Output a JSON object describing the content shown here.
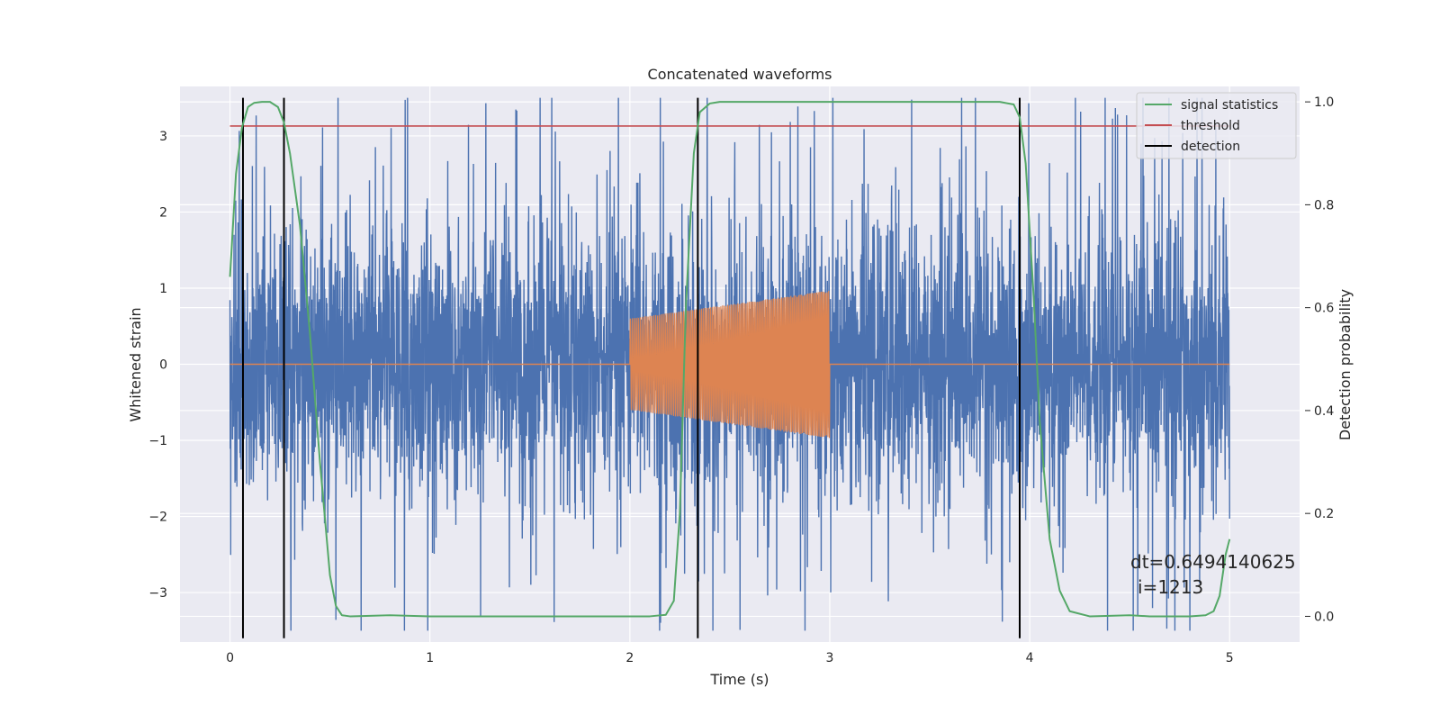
{
  "chart_data": {
    "type": "line",
    "title": "Concatenated waveforms",
    "xlabel": "Time (s)",
    "ylabel": "Whitened strain",
    "y2label": "Detection probability",
    "xlim": [
      -0.25,
      5.35
    ],
    "ylim": [
      -3.65,
      3.65
    ],
    "y2lim": [
      -0.05,
      1.03
    ],
    "xticks": [
      0,
      1,
      2,
      3,
      4,
      5
    ],
    "yticks": [
      -3,
      -2,
      -1,
      0,
      1,
      2,
      3
    ],
    "y2ticks": [
      0.0,
      0.2,
      0.4,
      0.6,
      0.8,
      1.0
    ],
    "grid": true,
    "legend_position": "top-right",
    "colors": {
      "background": "#eaeaf2",
      "grid": "#ffffff",
      "noise": "#4c72b0",
      "template": "#dd8452",
      "signal_statistics": "#55a868",
      "threshold": "#c44e52",
      "detection": "#000000"
    },
    "series": [
      {
        "name": "whitened strain",
        "axis": "left",
        "style": "noise",
        "x_range": [
          0,
          5
        ],
        "amplitude_core": 0.8,
        "amplitude_peak": 3.5
      },
      {
        "name": "injected waveform",
        "axis": "left",
        "style": "chirp",
        "x_range": [
          2,
          3
        ],
        "amplitude_start": 0.6,
        "amplitude_end": 0.97
      },
      {
        "name": "signal statistics",
        "axis": "right",
        "x": [
          0.0,
          0.03,
          0.06,
          0.09,
          0.12,
          0.16,
          0.2,
          0.24,
          0.27,
          0.3,
          0.35,
          0.4,
          0.45,
          0.5,
          0.53,
          0.56,
          0.6,
          0.8,
          1.0,
          1.5,
          2.0,
          2.1,
          2.18,
          2.22,
          2.25,
          2.28,
          2.32,
          2.35,
          2.4,
          2.45,
          2.5,
          3.0,
          3.5,
          3.85,
          3.92,
          3.95,
          3.98,
          4.02,
          4.05,
          4.1,
          4.15,
          4.2,
          4.3,
          4.5,
          4.6,
          4.8,
          4.88,
          4.92,
          4.95,
          4.98,
          5.0
        ],
        "y": [
          0.66,
          0.86,
          0.95,
          0.99,
          0.998,
          1.0,
          1.0,
          0.99,
          0.96,
          0.9,
          0.76,
          0.55,
          0.3,
          0.08,
          0.02,
          0.002,
          0.0,
          0.002,
          0.0,
          0.0,
          0.0,
          0.0,
          0.003,
          0.03,
          0.2,
          0.6,
          0.9,
          0.98,
          0.997,
          1.0,
          1.0,
          1.0,
          1.0,
          1.0,
          0.995,
          0.97,
          0.88,
          0.62,
          0.38,
          0.15,
          0.05,
          0.01,
          0.0,
          0.002,
          0.0,
          0.0,
          0.002,
          0.01,
          0.04,
          0.12,
          0.15
        ]
      },
      {
        "name": "threshold",
        "axis": "left",
        "x": [
          0,
          5
        ],
        "y": [
          3.13,
          3.13
        ]
      },
      {
        "name": "detection",
        "axis": "left",
        "type": "vlines",
        "x": [
          0.065,
          0.27,
          2.34,
          3.95
        ],
        "y_range": [
          -3.6,
          3.5
        ]
      }
    ],
    "legend": [
      "signal statistics",
      "threshold",
      "detection"
    ],
    "annotation": {
      "line1": "dt=0.6494140625",
      "line2": "i=1213"
    }
  }
}
